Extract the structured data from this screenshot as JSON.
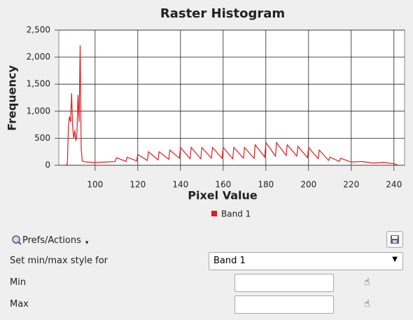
{
  "chart_data": {
    "type": "line",
    "title": "Raster Histogram",
    "x_label": "Pixel Value",
    "y_label": "Frequency",
    "x": [
      85,
      86,
      87,
      87.5,
      88,
      88.5,
      89,
      89.5,
      90,
      90.5,
      91,
      91.5,
      92,
      92.5,
      93,
      93.5,
      94,
      96,
      100,
      105,
      109.5,
      110,
      114.5,
      115,
      119.5,
      120,
      124.5,
      125,
      129.5,
      130,
      134.5,
      135,
      139.5,
      140,
      144.5,
      145,
      149.5,
      150,
      154.5,
      155,
      159.5,
      160,
      164.5,
      165,
      169.5,
      170,
      174.5,
      175,
      179.5,
      180,
      184.5,
      185,
      189.5,
      190,
      194.5,
      195,
      199.5,
      200,
      204.5,
      205,
      209.5,
      210,
      214.5,
      215,
      220,
      225,
      230,
      235,
      240,
      242
    ],
    "series": [
      {
        "name": "Band 1",
        "color": "#e31a1c",
        "values": [
          0,
          0,
          20,
          700,
          900,
          800,
          1330,
          700,
          500,
          650,
          450,
          600,
          1300,
          800,
          2220,
          300,
          80,
          60,
          50,
          60,
          70,
          140,
          70,
          150,
          80,
          200,
          90,
          250,
          100,
          250,
          110,
          280,
          130,
          330,
          120,
          330,
          120,
          330,
          130,
          330,
          130,
          330,
          120,
          330,
          130,
          330,
          130,
          380,
          150,
          420,
          170,
          420,
          180,
          380,
          170,
          350,
          140,
          330,
          120,
          280,
          90,
          150,
          70,
          130,
          60,
          70,
          40,
          50,
          30,
          0
        ]
      }
    ],
    "xlim": [
      83,
      245
    ],
    "ylim": [
      0,
      2500
    ],
    "xticks": [
      100,
      120,
      140,
      160,
      180,
      200,
      220,
      240
    ],
    "yticks": [
      0,
      500,
      {
        "value": 1000,
        "label": "1,000"
      },
      {
        "value": 1500,
        "label": "1,500"
      },
      {
        "value": 2000,
        "label": "2,000"
      },
      {
        "value": 2500,
        "label": "2,500"
      }
    ],
    "grid": true
  },
  "controls": {
    "prefs_button": "Prefs/Actions",
    "style_label": "Set min/max style for",
    "style_select": "Band 1",
    "min_label": "Min",
    "max_label": "Max"
  }
}
